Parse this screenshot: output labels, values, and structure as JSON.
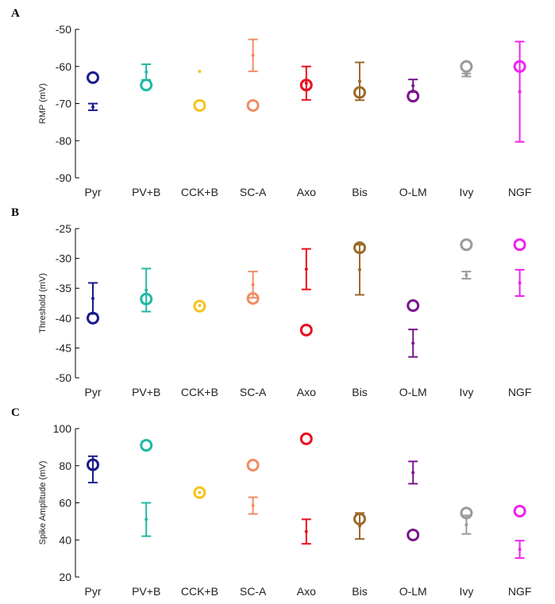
{
  "chart_data": [
    {
      "type": "scatter",
      "panel": "A",
      "ylabel": "RMP (mV)",
      "ylim": [
        -90,
        -50
      ],
      "yticks": [
        -50,
        -60,
        -70,
        -80,
        -90
      ],
      "categories": [
        "Pyr",
        "PV+B",
        "CCK+B",
        "SC-A",
        "Axo",
        "Bis",
        "O-LM",
        "Ivy",
        "NGF"
      ],
      "colors": [
        "#1b1b8c",
        "#21b8a4",
        "#f6c21c",
        "#f08c64",
        "#e8101e",
        "#9a6a2a",
        "#7a168c",
        "#9a9a9a",
        "#ee22ee"
      ],
      "model_values": [
        -63,
        -65,
        -70.5,
        -70.5,
        -65,
        -67,
        -68,
        -60,
        -60
      ],
      "experimental_mean": [
        -70.9,
        -61.5,
        -61.3,
        -57,
        -64.5,
        -64,
        -65.2,
        -62.3,
        -66.8
      ],
      "experimental_sd": [
        0.9,
        2.1,
        0,
        4.3,
        4.5,
        5.1,
        1.7,
        0.4,
        13.5
      ]
    },
    {
      "type": "scatter",
      "panel": "B",
      "ylabel": "Threshold (mV)",
      "ylim": [
        -50,
        -25
      ],
      "yticks": [
        -25,
        -30,
        -35,
        -40,
        -45,
        -50
      ],
      "categories": [
        "Pyr",
        "PV+B",
        "CCK+B",
        "SC-A",
        "Axo",
        "Bis",
        "O-LM",
        "Ivy",
        "NGF"
      ],
      "colors": [
        "#1b1b8c",
        "#21b8a4",
        "#f6c21c",
        "#f08c64",
        "#e8101e",
        "#9a6a2a",
        "#7a168c",
        "#9a9a9a",
        "#ee22ee"
      ],
      "model_values": [
        -40,
        -36.8,
        -38,
        -36.7,
        -42,
        -28.2,
        -37.9,
        -27.7,
        -27.7
      ],
      "experimental_mean": [
        -36.7,
        -35.3,
        -37.9,
        -34.4,
        -31.8,
        -31.9,
        -44.2,
        -32.8,
        -34.1
      ],
      "experimental_sd": [
        2.6,
        3.6,
        0,
        2.2,
        3.4,
        4.2,
        2.3,
        0.6,
        2.2
      ]
    },
    {
      "type": "scatter",
      "panel": "C",
      "ylabel": "Spike Amplitude (mV)",
      "ylim": [
        20,
        100
      ],
      "yticks": [
        100,
        80,
        60,
        40,
        20
      ],
      "categories": [
        "Pyr",
        "PV+B",
        "CCK+B",
        "SC-A",
        "Axo",
        "Bis",
        "O-LM",
        "Ivy",
        "NGF"
      ],
      "colors": [
        "#1b1b8c",
        "#21b8a4",
        "#f6c21c",
        "#f08c64",
        "#e8101e",
        "#9a6a2a",
        "#7a168c",
        "#9a9a9a",
        "#ee22ee"
      ],
      "model_values": [
        80.5,
        91,
        65.5,
        80.3,
        94.5,
        51.3,
        42.7,
        54.5,
        55.5
      ],
      "experimental_mean": [
        78,
        51,
        65.5,
        58.5,
        44.5,
        47.5,
        76.3,
        48.2,
        34.9
      ],
      "experimental_sd": [
        7.1,
        9,
        0,
        4.5,
        6.6,
        7,
        6,
        5,
        4.7
      ]
    }
  ]
}
